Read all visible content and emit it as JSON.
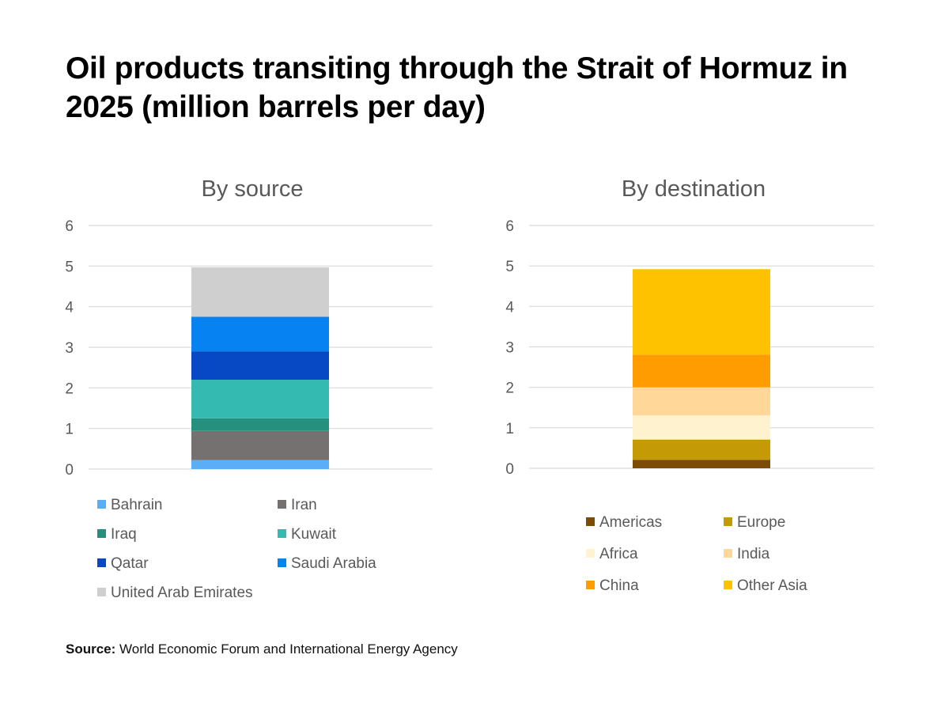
{
  "title": "Oil products transiting through the Strait of Hormuz in 2025 (million barrels per day)",
  "source": {
    "label": "Source:",
    "text": "World Economic Forum and International Energy Agency"
  },
  "chart_data": [
    {
      "type": "bar",
      "stacked": true,
      "title": "By source",
      "ylim": [
        0,
        6
      ],
      "yticks": [
        0,
        1,
        2,
        3,
        4,
        5,
        6
      ],
      "grid": true,
      "legend_position": "bottom",
      "series": [
        {
          "name": "Bahrain",
          "values": [
            0.22
          ],
          "color": "#5BAEF5"
        },
        {
          "name": "Iran",
          "values": [
            0.72
          ],
          "color": "#767171"
        },
        {
          "name": "Iraq",
          "values": [
            0.31
          ],
          "color": "#26907F"
        },
        {
          "name": "Kuwait",
          "values": [
            0.95
          ],
          "color": "#34BAB1"
        },
        {
          "name": "Qatar",
          "values": [
            0.7
          ],
          "color": "#0749C5"
        },
        {
          "name": "Saudi Arabia",
          "values": [
            0.85
          ],
          "color": "#0683F1"
        },
        {
          "name": "United Arab Emirates",
          "values": [
            1.22
          ],
          "color": "#D0CFCF"
        }
      ]
    },
    {
      "type": "bar",
      "stacked": true,
      "title": "By destination",
      "ylim": [
        0,
        6
      ],
      "yticks": [
        0,
        1,
        2,
        3,
        4,
        5,
        6
      ],
      "grid": true,
      "legend_position": "bottom",
      "series": [
        {
          "name": "Americas",
          "values": [
            0.21
          ],
          "color": "#7C4C06"
        },
        {
          "name": "Europe",
          "values": [
            0.5
          ],
          "color": "#C49A06"
        },
        {
          "name": "Africa",
          "values": [
            0.6
          ],
          "color": "#FFF2CE"
        },
        {
          "name": "India",
          "values": [
            0.69
          ],
          "color": "#FFD798"
        },
        {
          "name": "China",
          "values": [
            0.81
          ],
          "color": "#FF9C00"
        },
        {
          "name": "Other Asia",
          "values": [
            2.11
          ],
          "color": "#FFC200"
        }
      ]
    }
  ]
}
